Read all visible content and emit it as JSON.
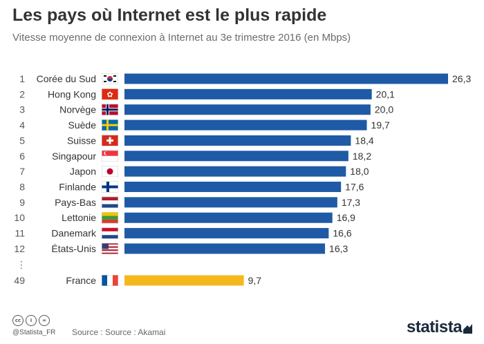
{
  "header": {
    "title": "Les pays où Internet est le plus rapide",
    "subtitle": "Vitesse moyenne de connexion à Internet au 3e trimestre 2016 (en Mbps)"
  },
  "chart_data": {
    "type": "bar",
    "orientation": "horizontal",
    "title": "Les pays où Internet est le plus rapide",
    "subtitle": "Vitesse moyenne de connexion à Internet au 3e trimestre 2016 (en Mbps)",
    "ellipsis": "⋮",
    "rows": [
      {
        "rank": "1",
        "country": "Corée du Sud",
        "value": 26.3,
        "label": "26,3",
        "flag": "south-korea",
        "highlight": false
      },
      {
        "rank": "2",
        "country": "Hong Kong",
        "value": 20.1,
        "label": "20,1",
        "flag": "hong-kong",
        "highlight": false
      },
      {
        "rank": "3",
        "country": "Norvège",
        "value": 20.0,
        "label": "20,0",
        "flag": "norway",
        "highlight": false
      },
      {
        "rank": "4",
        "country": "Suède",
        "value": 19.7,
        "label": "19,7",
        "flag": "sweden",
        "highlight": false
      },
      {
        "rank": "5",
        "country": "Suisse",
        "value": 18.4,
        "label": "18,4",
        "flag": "switzerland",
        "highlight": false
      },
      {
        "rank": "6",
        "country": "Singapour",
        "value": 18.2,
        "label": "18,2",
        "flag": "singapore",
        "highlight": false
      },
      {
        "rank": "7",
        "country": "Japon",
        "value": 18.0,
        "label": "18,0",
        "flag": "japan",
        "highlight": false
      },
      {
        "rank": "8",
        "country": "Finlande",
        "value": 17.6,
        "label": "17,6",
        "flag": "finland",
        "highlight": false
      },
      {
        "rank": "9",
        "country": "Pays-Bas",
        "value": 17.3,
        "label": "17,3",
        "flag": "netherlands",
        "highlight": false
      },
      {
        "rank": "10",
        "country": "Lettonie",
        "value": 16.9,
        "label": "16,9",
        "flag": "latvia",
        "highlight": false
      },
      {
        "rank": "11",
        "country": "Danemark",
        "value": 16.6,
        "label": "16,6",
        "flag": "denmark",
        "highlight": false
      },
      {
        "rank": "12",
        "country": "États-Unis",
        "value": 16.3,
        "label": "16,3",
        "flag": "united-states",
        "highlight": false
      },
      {
        "rank": "49",
        "country": "France",
        "value": 9.7,
        "label": "9,7",
        "flag": "france",
        "highlight": true
      }
    ],
    "colors": {
      "bar": "#1f5aa6",
      "highlight": "#f5b81c"
    },
    "grid": false,
    "legend": "none"
  },
  "footer": {
    "handle": "@Statista_FR",
    "source": "Source : Source : Akamai",
    "brand": "statista",
    "license_icons": [
      "cc-icon",
      "attribution-icon",
      "no-derivatives-icon"
    ]
  }
}
